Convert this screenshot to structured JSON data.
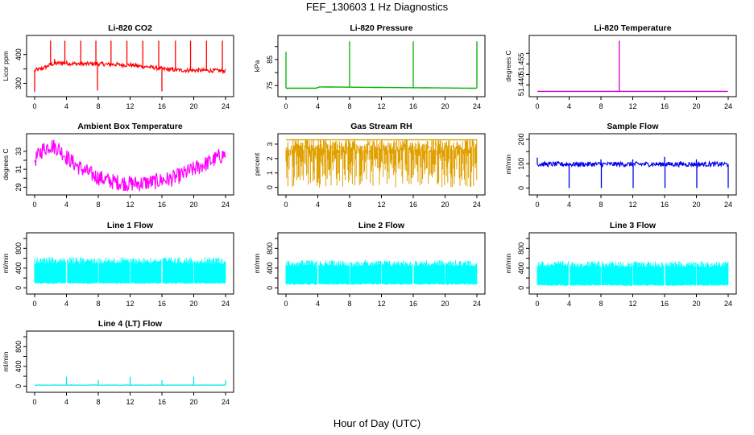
{
  "page": {
    "title": "FEF_130603  1 Hz Diagnostics",
    "xlabel": "Hour of Day (UTC)"
  },
  "chart_data": [
    {
      "type": "line",
      "title": "Li-820 CO2",
      "ylabel": "Licor ppm",
      "color": "#ff0000",
      "xlim": [
        0,
        24
      ],
      "ylim": [
        265,
        455
      ],
      "xticks": [
        0,
        4,
        8,
        12,
        16,
        20,
        24
      ],
      "yticks": [
        300,
        350,
        400
      ],
      "ytick_labels": [
        "300",
        "",
        "400"
      ],
      "series": [
        {
          "x": [
            0,
            0.5,
            1,
            1.5,
            2,
            2.5,
            3,
            3.5,
            4,
            5,
            6,
            7,
            8,
            9,
            10,
            11,
            12,
            13,
            14,
            15,
            16,
            17,
            18,
            19,
            20,
            21,
            22,
            23,
            24
          ],
          "values": [
            345,
            348,
            352,
            358,
            365,
            368,
            370,
            371,
            370,
            368,
            367,
            368,
            368,
            366,
            366,
            364,
            364,
            360,
            358,
            355,
            350,
            348,
            346,
            345,
            345,
            345,
            344,
            344,
            343
          ]
        }
      ],
      "spikes": [
        {
          "x": 0.0,
          "value": 270
        },
        {
          "x": 2.0,
          "value": 448
        },
        {
          "x": 2.5,
          "value": 385
        },
        {
          "x": 3.8,
          "value": 448
        },
        {
          "x": 5.8,
          "value": 448
        },
        {
          "x": 7.7,
          "value": 448
        },
        {
          "x": 7.9,
          "value": 275
        },
        {
          "x": 9.6,
          "value": 448
        },
        {
          "x": 11.6,
          "value": 448
        },
        {
          "x": 13.6,
          "value": 448
        },
        {
          "x": 15.6,
          "value": 448
        },
        {
          "x": 16.0,
          "value": 272
        },
        {
          "x": 17.7,
          "value": 448
        },
        {
          "x": 19.6,
          "value": 448
        },
        {
          "x": 21.6,
          "value": 448
        },
        {
          "x": 23.6,
          "value": 448
        }
      ],
      "noise": 7
    },
    {
      "type": "line",
      "title": "Li-820 Pressure",
      "ylabel": "kPa",
      "color": "#00b000",
      "xlim": [
        0,
        24
      ],
      "ylim": [
        72,
        93
      ],
      "xticks": [
        0,
        4,
        8,
        12,
        16,
        20,
        24
      ],
      "yticks": [
        75,
        80,
        85,
        90
      ],
      "ytick_labels": [
        "75",
        "",
        "85",
        ""
      ],
      "series": [
        {
          "x": [
            0,
            0.3,
            3.8,
            4.2,
            24
          ],
          "values": [
            74,
            74,
            74,
            74.5,
            74
          ]
        }
      ],
      "spikes": [
        {
          "x": 0.0,
          "value": 88
        },
        {
          "x": 8.0,
          "value": 92
        },
        {
          "x": 16.0,
          "value": 92
        },
        {
          "x": 24.0,
          "value": 92
        }
      ],
      "noise": 0
    },
    {
      "type": "line",
      "title": "Li-820 Temperature",
      "ylabel": "degrees C",
      "color": "#cc00cc",
      "xlim": [
        0,
        24
      ],
      "ylim": [
        51.436,
        51.462
      ],
      "xticks": [
        0,
        4,
        8,
        12,
        16,
        20,
        24
      ],
      "yticks": [
        51.44,
        51.445,
        51.45,
        51.455
      ],
      "ytick_labels": [
        "51.440",
        "",
        "51.455",
        ""
      ],
      "series": [
        {
          "x": [
            0,
            24
          ],
          "values": [
            51.437,
            51.437
          ]
        }
      ],
      "spikes": [
        {
          "x": 10.3,
          "value": 51.461
        }
      ],
      "noise": 0
    },
    {
      "type": "line",
      "title": "Ambient Box Temperature",
      "ylabel": "degrees C",
      "color": "#ff00ff",
      "xlim": [
        0,
        24
      ],
      "ylim": [
        28.5,
        34.6
      ],
      "xticks": [
        0,
        4,
        8,
        12,
        16,
        20,
        24
      ],
      "yticks": [
        29,
        30,
        31,
        32,
        33
      ],
      "ytick_labels": [
        "29",
        "",
        "31",
        "",
        "33"
      ],
      "series": [
        {
          "x": [
            0,
            1,
            2,
            3,
            4,
            5,
            6,
            7,
            8,
            9,
            10,
            11,
            12,
            13,
            14,
            15,
            16,
            17,
            18,
            19,
            20,
            21,
            22,
            23,
            24
          ],
          "values": [
            32.0,
            33.2,
            33.7,
            33.3,
            32.4,
            31.6,
            31.0,
            30.5,
            30.1,
            29.8,
            29.6,
            29.5,
            29.4,
            29.4,
            29.5,
            29.6,
            29.8,
            29.9,
            30.2,
            30.6,
            31.0,
            31.4,
            31.8,
            32.3,
            32.7
          ]
        }
      ],
      "spikes": [],
      "noise": 0.9
    },
    {
      "type": "line",
      "title": "Gas Stream RH",
      "ylabel": "percent",
      "color": "#e0a000",
      "xlim": [
        0,
        24
      ],
      "ylim": [
        -0.3,
        3.5
      ],
      "xticks": [
        0,
        4,
        8,
        12,
        16,
        20,
        24
      ],
      "yticks": [
        0,
        1,
        2,
        3
      ],
      "ytick_labels": [
        "0",
        "1",
        "2",
        "3"
      ],
      "series": [
        {
          "x": [
            0,
            24
          ],
          "values": [
            3.3,
            3.3
          ]
        }
      ],
      "band_low": 0.0,
      "band_high": 3.35,
      "spikes": [],
      "noise": 0
    },
    {
      "type": "line",
      "title": "Sample Flow",
      "ylabel": "ml/min",
      "color": "#0000ee",
      "xlim": [
        0,
        24
      ],
      "ylim": [
        -15,
        210
      ],
      "xticks": [
        0,
        4,
        8,
        12,
        16,
        20,
        24
      ],
      "yticks": [
        0,
        50,
        100,
        150,
        200
      ],
      "ytick_labels": [
        "0",
        "",
        "100",
        "",
        "200"
      ],
      "series": [
        {
          "x": [
            0,
            24
          ],
          "values": [
            98,
            98
          ]
        }
      ],
      "spikes": [
        {
          "x": 0.0,
          "value": 125
        },
        {
          "x": 4.0,
          "value": 0
        },
        {
          "x": 8.0,
          "value": 118
        },
        {
          "x": 8.05,
          "value": 0
        },
        {
          "x": 12.0,
          "value": 118
        },
        {
          "x": 12.05,
          "value": 0
        },
        {
          "x": 16.0,
          "value": 128
        },
        {
          "x": 16.05,
          "value": 0
        },
        {
          "x": 20.0,
          "value": 118
        },
        {
          "x": 20.05,
          "value": 0
        },
        {
          "x": 24.0,
          "value": 0
        }
      ],
      "noise": 10
    },
    {
      "type": "area",
      "title": "Line 1 Flow",
      "ylabel": "ml/min",
      "color": "#00ffff",
      "xlim": [
        0,
        24
      ],
      "ylim": [
        -60,
        1050
      ],
      "xticks": [
        0,
        4,
        8,
        12,
        16,
        20,
        24
      ],
      "yticks": [
        0,
        200,
        400,
        600,
        800,
        1000
      ],
      "ytick_labels": [
        "0",
        "",
        "400",
        "",
        "800",
        ""
      ],
      "band_low": 80,
      "band_high": 620,
      "gaps": [
        4,
        8,
        12,
        16,
        20
      ],
      "spikes": [],
      "noise": 0
    },
    {
      "type": "area",
      "title": "Line 2 Flow",
      "ylabel": "ml/min",
      "color": "#00ffff",
      "xlim": [
        0,
        24
      ],
      "ylim": [
        -60,
        1050
      ],
      "xticks": [
        0,
        4,
        8,
        12,
        16,
        20,
        24
      ],
      "yticks": [
        0,
        200,
        400,
        600,
        800,
        1000
      ],
      "ytick_labels": [
        "0",
        "",
        "400",
        "",
        "800",
        ""
      ],
      "band_low": 60,
      "band_high": 560,
      "gaps": [
        4,
        8,
        12,
        16,
        20
      ],
      "spikes": [],
      "noise": 0
    },
    {
      "type": "area",
      "title": "Line 3 Flow",
      "ylabel": "ml/min",
      "color": "#00ffff",
      "xlim": [
        0,
        24
      ],
      "ylim": [
        -60,
        1050
      ],
      "xticks": [
        0,
        4,
        8,
        12,
        16,
        20,
        24
      ],
      "yticks": [
        0,
        200,
        400,
        600,
        800,
        1000
      ],
      "ytick_labels": [
        "0",
        "",
        "400",
        "",
        "800",
        ""
      ],
      "band_low": 40,
      "band_high": 540,
      "gaps": [
        4,
        8,
        12,
        16,
        20
      ],
      "spikes": [],
      "noise": 0
    },
    {
      "type": "line",
      "title": "Line 4 (LT) Flow",
      "ylabel": "ml/min",
      "color": "#00e8e8",
      "xlim": [
        0,
        24
      ],
      "ylim": [
        -60,
        1050
      ],
      "xticks": [
        0,
        4,
        8,
        12,
        16,
        20,
        24
      ],
      "yticks": [
        0,
        200,
        400,
        600,
        800,
        1000
      ],
      "ytick_labels": [
        "0",
        "",
        "400",
        "",
        "800",
        ""
      ],
      "series": [
        {
          "x": [
            0,
            24
          ],
          "values": [
            20,
            20
          ]
        }
      ],
      "spikes": [
        {
          "x": 4.0,
          "value": 190
        },
        {
          "x": 8.0,
          "value": 120
        },
        {
          "x": 12.0,
          "value": 190
        },
        {
          "x": 16.0,
          "value": 120
        },
        {
          "x": 20.0,
          "value": 190
        },
        {
          "x": 24.0,
          "value": 120
        }
      ],
      "noise": 4
    }
  ]
}
